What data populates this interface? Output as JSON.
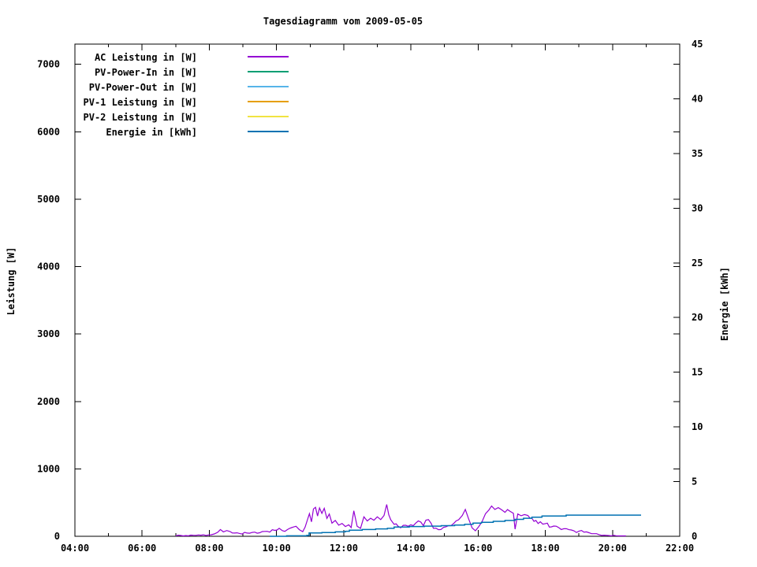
{
  "chart_data": {
    "type": "line",
    "title": "Tagesdiagramm vom 2009-05-05",
    "ylabel_left": "Leistung [W]",
    "ylabel_right": "Energie [kWh]",
    "grid": false,
    "legend_position": "top-left-inside",
    "x_axis": {
      "unit": "time of day",
      "min_hour": 4,
      "max_hour": 22,
      "major_ticks": [
        {
          "hour": 4,
          "label": "04:00"
        },
        {
          "hour": 6,
          "label": "06:00"
        },
        {
          "hour": 8,
          "label": "08:00"
        },
        {
          "hour": 10,
          "label": "10:00"
        },
        {
          "hour": 12,
          "label": "12:00"
        },
        {
          "hour": 14,
          "label": "14:00"
        },
        {
          "hour": 16,
          "label": "16:00"
        },
        {
          "hour": 18,
          "label": "18:00"
        },
        {
          "hour": 20,
          "label": "20:00"
        },
        {
          "hour": 22,
          "label": "22:00"
        }
      ],
      "minor_tick_every_hours": 1
    },
    "y_left_axis": {
      "label": "Leistung [W]",
      "min": 0,
      "max_display": 7300,
      "tick_values": [
        0,
        1000,
        2000,
        3000,
        4000,
        5000,
        6000,
        7000
      ]
    },
    "y_right_axis": {
      "label": "Energie [kWh]",
      "min": 0,
      "max": 45,
      "tick_values": [
        0,
        5,
        10,
        15,
        20,
        25,
        30,
        35,
        40,
        45
      ]
    },
    "series": [
      {
        "name": "AC Leistung in [W]",
        "color": "#9400D3",
        "axis": "left",
        "unit": "W",
        "style": "lines",
        "points": [
          [
            7.0,
            5
          ],
          [
            7.15,
            12
          ],
          [
            7.3,
            10
          ],
          [
            7.45,
            18
          ],
          [
            7.6,
            14
          ],
          [
            7.75,
            16
          ],
          [
            7.9,
            12
          ],
          [
            8.05,
            22
          ],
          [
            8.15,
            35
          ],
          [
            8.25,
            60
          ],
          [
            8.33,
            100
          ],
          [
            8.42,
            65
          ],
          [
            8.52,
            85
          ],
          [
            8.62,
            70
          ],
          [
            8.75,
            48
          ],
          [
            8.9,
            42
          ],
          [
            9.05,
            58
          ],
          [
            9.2,
            46
          ],
          [
            9.35,
            62
          ],
          [
            9.5,
            52
          ],
          [
            9.65,
            72
          ],
          [
            9.8,
            62
          ],
          [
            9.95,
            88
          ],
          [
            10.08,
            118
          ],
          [
            10.18,
            82
          ],
          [
            10.32,
            98
          ],
          [
            10.45,
            128
          ],
          [
            10.58,
            148
          ],
          [
            10.68,
            98
          ],
          [
            10.78,
            68
          ],
          [
            10.85,
            135
          ],
          [
            10.92,
            245
          ],
          [
            10.98,
            335
          ],
          [
            11.04,
            215
          ],
          [
            11.1,
            405
          ],
          [
            11.16,
            430
          ],
          [
            11.22,
            300
          ],
          [
            11.28,
            420
          ],
          [
            11.35,
            340
          ],
          [
            11.42,
            415
          ],
          [
            11.5,
            265
          ],
          [
            11.57,
            330
          ],
          [
            11.65,
            195
          ],
          [
            11.75,
            235
          ],
          [
            11.85,
            165
          ],
          [
            11.95,
            190
          ],
          [
            12.05,
            145
          ],
          [
            12.15,
            170
          ],
          [
            12.22,
            128
          ],
          [
            12.3,
            378
          ],
          [
            12.4,
            148
          ],
          [
            12.5,
            118
          ],
          [
            12.6,
            288
          ],
          [
            12.7,
            228
          ],
          [
            12.8,
            268
          ],
          [
            12.9,
            238
          ],
          [
            13.0,
            288
          ],
          [
            13.1,
            248
          ],
          [
            13.2,
            308
          ],
          [
            13.28,
            472
          ],
          [
            13.4,
            245
          ],
          [
            13.5,
            178
          ],
          [
            13.62,
            148
          ],
          [
            13.77,
            162
          ],
          [
            13.92,
            148
          ],
          [
            14.07,
            158
          ],
          [
            14.22,
            228
          ],
          [
            14.37,
            158
          ],
          [
            14.52,
            248
          ],
          [
            14.67,
            118
          ],
          [
            14.82,
            98
          ],
          [
            14.97,
            132
          ],
          [
            15.12,
            158
          ],
          [
            15.27,
            188
          ],
          [
            15.42,
            245
          ],
          [
            15.53,
            310
          ],
          [
            15.62,
            398
          ],
          [
            15.72,
            255
          ],
          [
            15.82,
            125
          ],
          [
            15.92,
            82
          ],
          [
            16.02,
            145
          ],
          [
            16.12,
            220
          ],
          [
            16.22,
            335
          ],
          [
            16.32,
            390
          ],
          [
            16.4,
            448
          ],
          [
            16.5,
            398
          ],
          [
            16.6,
            425
          ],
          [
            16.7,
            392
          ],
          [
            16.8,
            355
          ],
          [
            16.95,
            370
          ],
          [
            17.05,
            340
          ],
          [
            17.1,
            105
          ],
          [
            17.18,
            330
          ],
          [
            17.28,
            305
          ],
          [
            17.38,
            322
          ],
          [
            17.48,
            310
          ],
          [
            17.6,
            268
          ],
          [
            17.72,
            235
          ],
          [
            17.85,
            215
          ],
          [
            18.0,
            188
          ],
          [
            18.12,
            135
          ],
          [
            18.25,
            152
          ],
          [
            18.4,
            128
          ],
          [
            18.55,
            112
          ],
          [
            18.7,
            98
          ],
          [
            18.85,
            82
          ],
          [
            19.0,
            76
          ],
          [
            19.15,
            62
          ],
          [
            19.3,
            52
          ],
          [
            19.45,
            38
          ],
          [
            19.6,
            25
          ],
          [
            19.75,
            16
          ],
          [
            19.9,
            10
          ],
          [
            20.1,
            8
          ],
          [
            20.25,
            5
          ],
          [
            20.4,
            1
          ]
        ]
      },
      {
        "name": "PV-Power-In in [W]",
        "color": "#009E73",
        "axis": "left",
        "unit": "W",
        "style": "lines",
        "points": []
      },
      {
        "name": "PV-Power-Out in [W]",
        "color": "#56B4E9",
        "axis": "left",
        "unit": "W",
        "style": "lines",
        "points": []
      },
      {
        "name": "PV-1 Leistung in [W]",
        "color": "#E69F00",
        "axis": "left",
        "unit": "W",
        "style": "lines",
        "points": []
      },
      {
        "name": "PV-2 Leistung in [W]",
        "color": "#F0E442",
        "axis": "left",
        "unit": "W",
        "style": "lines",
        "points": []
      },
      {
        "name": "Energie in [kWh]",
        "color": "#0072B2",
        "axis": "right",
        "unit": "kWh",
        "style": "steps",
        "points": [
          [
            9.8,
            0
          ],
          [
            10.3,
            0.04
          ],
          [
            10.9,
            0.08
          ],
          [
            10.97,
            0.3
          ],
          [
            11.35,
            0.34
          ],
          [
            11.75,
            0.4
          ],
          [
            12.05,
            0.46
          ],
          [
            12.17,
            0.56
          ],
          [
            12.55,
            0.62
          ],
          [
            12.95,
            0.68
          ],
          [
            13.3,
            0.73
          ],
          [
            13.5,
            0.85
          ],
          [
            13.95,
            0.89
          ],
          [
            14.4,
            0.93
          ],
          [
            14.9,
            0.97
          ],
          [
            15.3,
            1.02
          ],
          [
            15.6,
            1.1
          ],
          [
            15.85,
            1.2
          ],
          [
            16.1,
            1.28
          ],
          [
            16.45,
            1.37
          ],
          [
            16.8,
            1.45
          ],
          [
            17.1,
            1.55
          ],
          [
            17.35,
            1.65
          ],
          [
            17.6,
            1.75
          ],
          [
            17.9,
            1.85
          ],
          [
            18.55,
            1.86
          ],
          [
            18.62,
            1.94
          ],
          [
            20.85,
            1.94
          ]
        ]
      }
    ]
  }
}
